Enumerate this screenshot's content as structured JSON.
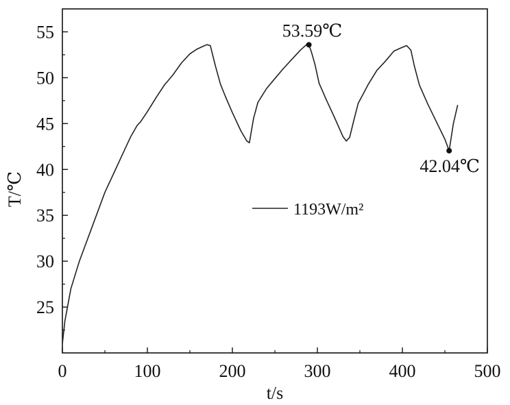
{
  "chart_data": {
    "type": "line",
    "xlabel": "t/s",
    "ylabel": "T/℃",
    "xlim": [
      0,
      500
    ],
    "ylim": [
      20,
      57.5
    ],
    "x_ticks": [
      0,
      100,
      200,
      300,
      400,
      500
    ],
    "y_ticks": [
      25,
      30,
      35,
      40,
      45,
      50,
      55
    ],
    "grid": false,
    "legend_position": "center-right",
    "series": [
      {
        "name": "1193W/m²",
        "color": "#222222",
        "x": [
          0,
          3,
          5,
          8,
          10,
          15,
          20,
          30,
          40,
          50,
          60,
          70,
          80,
          88,
          92,
          100,
          110,
          120,
          130,
          140,
          150,
          158,
          165,
          170,
          174,
          180,
          186,
          192,
          200,
          210,
          217,
          220,
          222,
          225,
          230,
          240,
          250,
          260,
          270,
          280,
          287,
          290,
          293,
          297,
          302,
          310,
          320,
          330,
          334,
          338,
          343,
          348,
          360,
          370,
          380,
          390,
          397,
          405,
          410,
          414,
          420,
          430,
          440,
          450,
          455,
          460,
          465
        ],
        "y": [
          21,
          23.5,
          24.5,
          26,
          27,
          28.5,
          30,
          32.5,
          35,
          37.5,
          39.5,
          41.5,
          43.5,
          44.8,
          45.2,
          46.3,
          47.8,
          49.2,
          50.3,
          51.6,
          52.6,
          53.1,
          53.4,
          53.6,
          53.5,
          51.3,
          49.3,
          47.9,
          46.2,
          44.2,
          43.1,
          42.9,
          44,
          45.6,
          47.3,
          48.8,
          49.9,
          51,
          52,
          53,
          53.59,
          53.6,
          52.8,
          51.5,
          49.4,
          47.7,
          45.7,
          43.6,
          43.1,
          43.5,
          45.4,
          47.2,
          49.3,
          50.8,
          51.8,
          52.9,
          53.2,
          53.5,
          53,
          51.3,
          49.2,
          47.1,
          45.2,
          43.3,
          42.04,
          45,
          47
        ]
      }
    ],
    "annotations": [
      {
        "text": "53.59℃",
        "x": 290,
        "y": 53.59
      },
      {
        "text": "42.04℃",
        "x": 455,
        "y": 42.04
      }
    ]
  }
}
